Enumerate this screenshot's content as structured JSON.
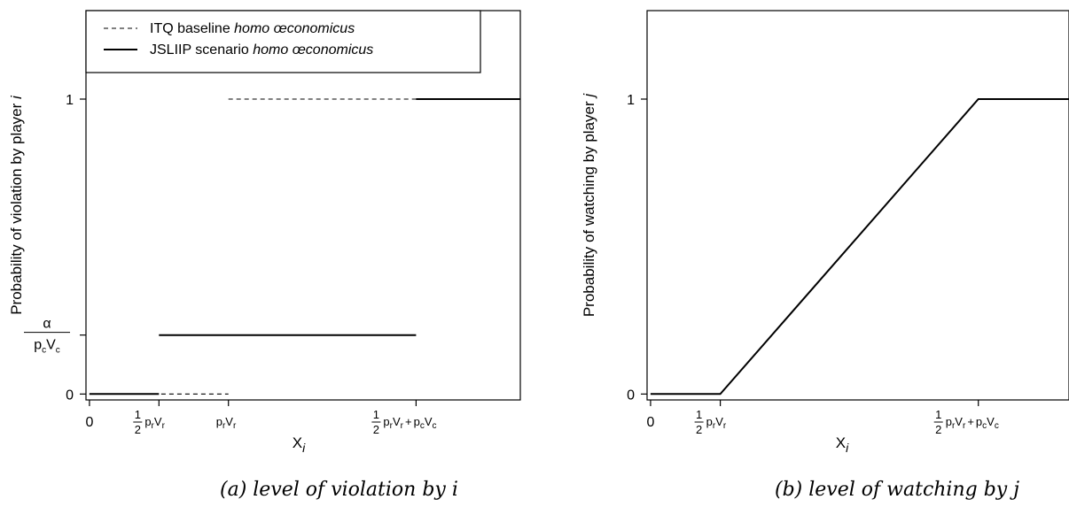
{
  "chart_data": [
    {
      "type": "line",
      "ylabel_prefix": "Probability of violation by player",
      "ylabel_var": "i",
      "xlabel": {
        "base": "X",
        "sub": "i"
      },
      "x_ticks": [
        {
          "key": "zero",
          "x": 0,
          "text": "0"
        },
        {
          "key": "half_pr",
          "x": 1,
          "frac_num": "1",
          "frac_den": "2",
          "base": "p",
          "sub1": "r",
          "base2": "V",
          "sub2": "r"
        },
        {
          "key": "pr",
          "x": 2,
          "base": "p",
          "sub1": "r",
          "base2": "V",
          "sub2": "r"
        },
        {
          "key": "half_pr_pc",
          "x": 4.7,
          "frac_num": "1",
          "frac_den": "2",
          "base": "p",
          "sub1": "r",
          "base2": "V",
          "sub2": "r",
          "plus": "+",
          "base3": "p",
          "sub3": "c",
          "base4": "V",
          "sub4": "c"
        }
      ],
      "y_ticks": [
        {
          "key": "zero",
          "y": 0,
          "text": "0"
        },
        {
          "key": "alpha",
          "y": 0.2,
          "num": "α",
          "den_base": "p",
          "den_sub1": "c",
          "den_base2": "V",
          "den_sub2": "c"
        },
        {
          "key": "one",
          "y": 1,
          "text": "1"
        }
      ],
      "xlim": [
        -0.05,
        6.2
      ],
      "ylim": [
        -0.02,
        1.3
      ],
      "legend": {
        "position": "top-left",
        "entries": [
          {
            "name": "ITQ baseline",
            "name_it": "homo œconomicus",
            "style": "dashed"
          },
          {
            "name": "JSLIIP scenario",
            "name_it": "homo œconomicus",
            "style": "solid"
          }
        ]
      },
      "series": [
        {
          "name": "ITQ baseline homo œconomicus",
          "style": "dashed",
          "segments": [
            [
              [
                0,
                0
              ],
              [
                2,
                0
              ]
            ],
            [
              [
                2,
                1
              ],
              [
                6.2,
                1
              ]
            ]
          ]
        },
        {
          "name": "JSLIIP scenario homo œconomicus",
          "style": "solid",
          "segments": [
            [
              [
                0,
                0
              ],
              [
                1,
                0
              ]
            ],
            [
              [
                1,
                0.2
              ],
              [
                4.7,
                0.2
              ]
            ],
            [
              [
                4.7,
                1
              ],
              [
                6.2,
                1
              ]
            ]
          ]
        }
      ],
      "caption": "(a) level of violation by i"
    },
    {
      "type": "line",
      "ylabel_prefix": "Probability of watching by player",
      "ylabel_var": "j",
      "xlabel": {
        "base": "X",
        "sub": "i"
      },
      "x_ticks": [
        {
          "key": "zero",
          "x": 0,
          "text": "0"
        },
        {
          "key": "half_pr",
          "x": 1,
          "frac_num": "1",
          "frac_den": "2",
          "base": "p",
          "sub1": "r",
          "base2": "V",
          "sub2": "r"
        },
        {
          "key": "half_pr_pc",
          "x": 4.7,
          "frac_num": "1",
          "frac_den": "2",
          "base": "p",
          "sub1": "r",
          "base2": "V",
          "sub2": "r",
          "plus": "+",
          "base3": "p",
          "sub3": "c",
          "base4": "V",
          "sub4": "c"
        }
      ],
      "y_ticks": [
        {
          "key": "zero",
          "y": 0,
          "text": "0"
        },
        {
          "key": "one",
          "y": 1,
          "text": "1"
        }
      ],
      "xlim": [
        -0.05,
        6.0
      ],
      "ylim": [
        -0.02,
        1.3
      ],
      "series": [
        {
          "name": "watching probability",
          "style": "solid",
          "segments": [
            [
              [
                0,
                0
              ],
              [
                1,
                0
              ],
              [
                4.7,
                1
              ],
              [
                6.0,
                1
              ]
            ]
          ]
        }
      ],
      "caption": "(b) level of watching by j"
    }
  ]
}
